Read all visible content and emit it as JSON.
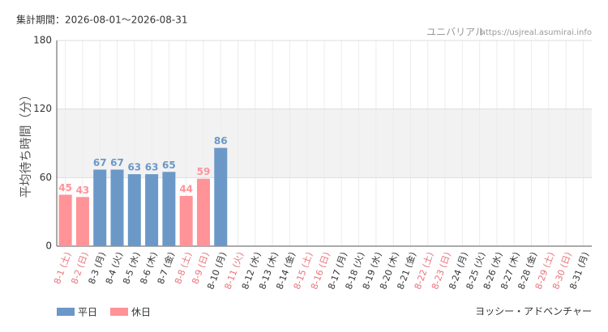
{
  "header": "集計期間：2026-08-01〜2026-08-31",
  "source_name": "ユニバリアル",
  "source_url": "https://usjreal.asumirai.info",
  "attraction": "ヨッシー・アドベンチャー",
  "chart_data": {
    "type": "bar",
    "y_label": "平均待ち時間（分）",
    "categories": [
      "8-1 (土)",
      "8-2 (日)",
      "8-3 (月)",
      "8-4 (火)",
      "8-5 (水)",
      "8-6 (木)",
      "8-7 (金)",
      "8-8 (土)",
      "8-9 (日)",
      "8-10 (月)",
      "8-11 (火)",
      "8-12 (水)",
      "8-13 (木)",
      "8-14 (金)",
      "8-15 (土)",
      "8-16 (日)",
      "8-17 (月)",
      "8-18 (火)",
      "8-19 (水)",
      "8-20 (木)",
      "8-21 (金)",
      "8-22 (土)",
      "8-23 (日)",
      "8-24 (月)",
      "8-25 (火)",
      "8-26 (水)",
      "8-27 (木)",
      "8-28 (金)",
      "8-29 (土)",
      "8-30 (日)",
      "8-31 (月)"
    ],
    "category_colors": [
      "#e8737a",
      "#e8737a",
      "#333333",
      "#333333",
      "#333333",
      "#333333",
      "#333333",
      "#e8737a",
      "#e8737a",
      "#333333",
      "#e8737a",
      "#333333",
      "#333333",
      "#333333",
      "#e8737a",
      "#e8737a",
      "#333333",
      "#333333",
      "#333333",
      "#333333",
      "#333333",
      "#e8737a",
      "#e8737a",
      "#333333",
      "#333333",
      "#333333",
      "#333333",
      "#333333",
      "#e8737a",
      "#e8737a",
      "#333333"
    ],
    "series": [
      {
        "name": "平日",
        "color": "#6b98c7",
        "values": [
          null,
          null,
          67,
          67,
          63,
          63,
          65,
          null,
          null,
          86,
          null,
          null,
          null,
          null,
          null,
          null,
          null,
          null,
          null,
          null,
          null,
          null,
          null,
          null,
          null,
          null,
          null,
          null,
          null,
          null,
          null
        ]
      },
      {
        "name": "休日",
        "color": "#ff9398",
        "values": [
          45,
          43,
          null,
          null,
          null,
          null,
          null,
          44,
          59,
          null,
          null,
          null,
          null,
          null,
          null,
          null,
          null,
          null,
          null,
          null,
          null,
          null,
          null,
          null,
          null,
          null,
          null,
          null,
          null,
          null,
          null
        ]
      }
    ],
    "ylim": [
      0,
      180
    ],
    "yticks": [
      0,
      60,
      120,
      180
    ],
    "shaded_range": [
      60,
      120
    ],
    "grid": true
  }
}
